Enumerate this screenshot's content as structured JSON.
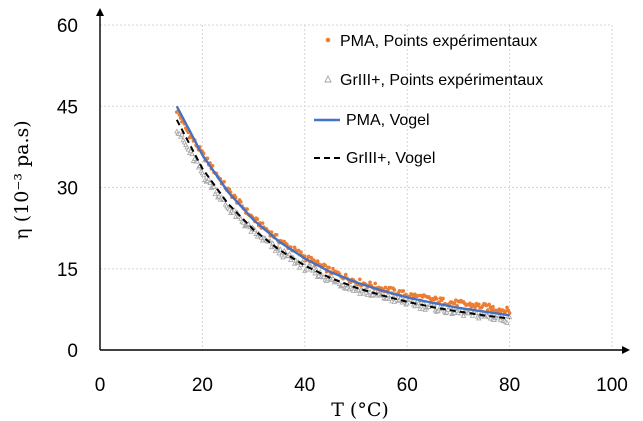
{
  "chart_data": {
    "type": "scatter",
    "xlabel": "T (°C)",
    "ylabel": "η (10⁻³ pa.s)",
    "xlim": [
      0,
      100
    ],
    "ylim": [
      0,
      60
    ],
    "x_ticks": [
      0,
      20,
      40,
      60,
      80,
      100
    ],
    "y_ticks": [
      0,
      15,
      30,
      45,
      60
    ],
    "grid": true,
    "legend_position": "top-right",
    "series": [
      {
        "name": "PMA, Points expérimentaux",
        "kind": "scatter",
        "marker": "circle",
        "color": "#ED7D31",
        "x": [
          15,
          17,
          20,
          25,
          30,
          35,
          40,
          45,
          50,
          55,
          60,
          65,
          70,
          75,
          80
        ],
        "y": [
          44.3,
          40.5,
          36.2,
          29.5,
          24.2,
          20.3,
          17.2,
          14.6,
          12.7,
          11.4,
          10.2,
          9.3,
          8.6,
          8.0,
          7.2
        ]
      },
      {
        "name": "GrIII+, Points expérimentaux",
        "kind": "scatter",
        "marker": "triangle",
        "color": "#A5A5A5",
        "x": [
          15,
          17,
          20,
          25,
          30,
          35,
          40,
          45,
          50,
          55,
          60,
          65,
          70,
          75,
          80
        ],
        "y": [
          41.0,
          37.3,
          32.6,
          26.3,
          21.8,
          18.2,
          15.3,
          13.0,
          11.2,
          9.9,
          8.8,
          7.8,
          7.0,
          6.3,
          5.6
        ]
      },
      {
        "name": "PMA, Vogel",
        "kind": "line",
        "style": "solid",
        "color": "#4472C4",
        "x": [
          15,
          20,
          25,
          30,
          35,
          40,
          45,
          50,
          55,
          60,
          65,
          70,
          75,
          80
        ],
        "y": [
          45.0,
          36.0,
          29.2,
          24.0,
          20.0,
          16.9,
          14.4,
          12.5,
          11.0,
          9.7,
          8.7,
          7.8,
          7.1,
          6.4
        ]
      },
      {
        "name": "GrIII+, Vogel",
        "kind": "line",
        "style": "dashed",
        "color": "#000000",
        "x": [
          15,
          20,
          25,
          30,
          35,
          40,
          45,
          50,
          55,
          60,
          65,
          70,
          75,
          80
        ],
        "y": [
          42.5,
          33.5,
          27.0,
          22.2,
          18.5,
          15.6,
          13.3,
          11.5,
          10.1,
          8.9,
          7.9,
          7.1,
          6.4,
          5.8
        ]
      }
    ]
  }
}
